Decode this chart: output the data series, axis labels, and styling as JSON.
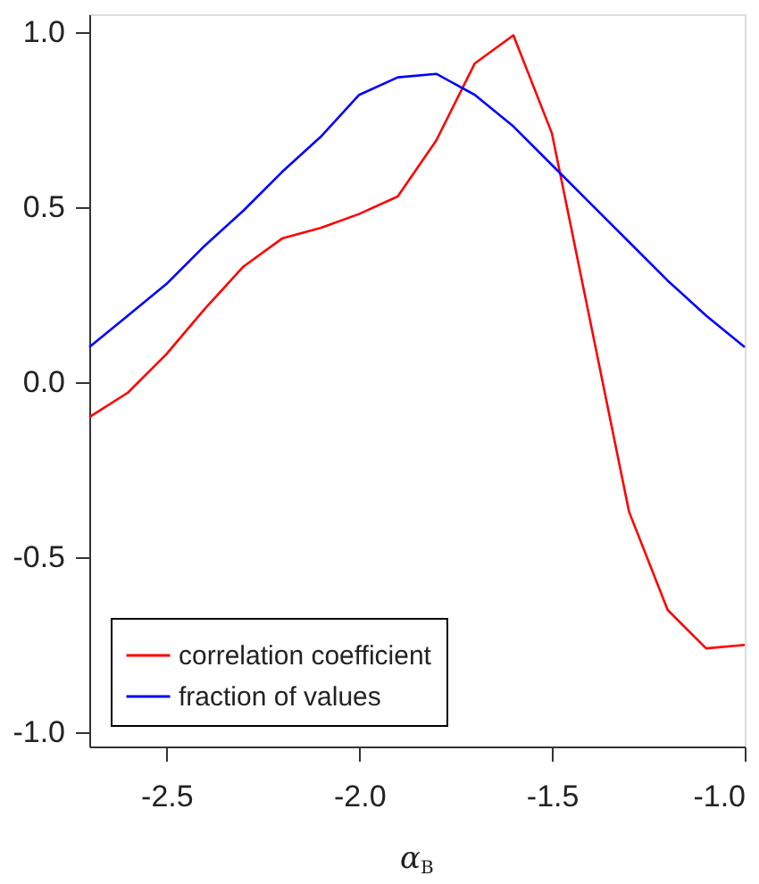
{
  "chart_data": {
    "type": "line",
    "xlabel": "α$_{B}$",
    "x": [
      -2.7,
      -2.6,
      -2.5,
      -2.4,
      -2.3,
      -2.2,
      -2.1,
      -2.0,
      -1.9,
      -1.8,
      -1.7,
      -1.6,
      -1.5,
      -1.4,
      -1.3,
      -1.2,
      -1.1,
      -1.0
    ],
    "series": [
      {
        "name": "correlation coefficient",
        "color": "#ff0000",
        "values": [
          -0.1,
          -0.03,
          0.08,
          0.21,
          0.33,
          0.41,
          0.44,
          0.48,
          0.53,
          0.69,
          0.91,
          0.99,
          0.71,
          0.17,
          -0.37,
          -0.65,
          -0.76,
          -0.75
        ]
      },
      {
        "name": "fraction of values",
        "color": "#0000ff",
        "values": [
          0.1,
          0.19,
          0.28,
          0.39,
          0.49,
          0.6,
          0.7,
          0.82,
          0.87,
          0.88,
          0.82,
          0.73,
          0.62,
          0.51,
          0.4,
          0.29,
          0.19,
          0.1
        ]
      }
    ],
    "xlim": [
      -2.7,
      -1.0
    ],
    "xticks": [
      {
        "value": -2.5,
        "label": "-2.5"
      },
      {
        "value": -2.0,
        "label": "-2.0"
      },
      {
        "value": -1.5,
        "label": "-1.5"
      },
      {
        "value": -1.0,
        "label": "-1.0"
      }
    ],
    "ylim": [
      -1.04,
      1.05
    ],
    "yticks": [
      {
        "value": -1.0,
        "label": "-1.0"
      },
      {
        "value": -0.5,
        "label": "-0.5"
      },
      {
        "value": 0.0,
        "label": "0.0"
      },
      {
        "value": 0.5,
        "label": "0.5"
      },
      {
        "value": 1.0,
        "label": "1.0"
      }
    ],
    "grid": false,
    "legend": "bottom left",
    "marker": "none",
    "line_style": "solid"
  }
}
